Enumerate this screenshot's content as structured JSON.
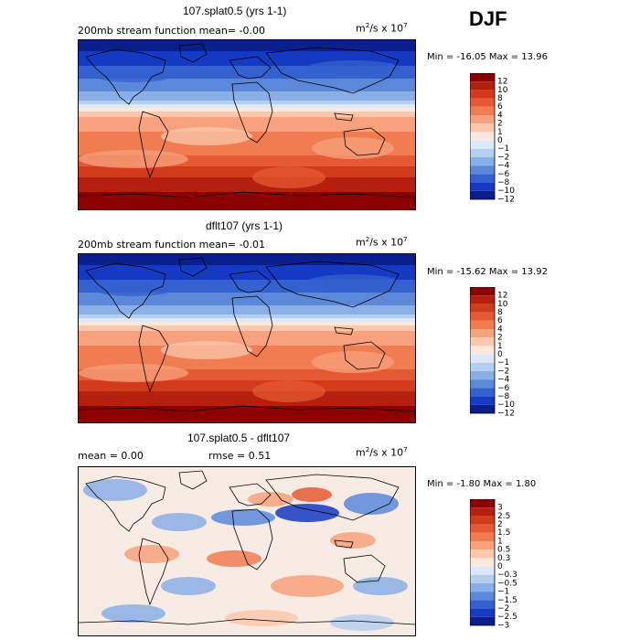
{
  "season": "DJF",
  "panels": [
    {
      "title": "107.splat0.5 (yrs 1-1)",
      "left_text": "200mb stream function  mean=   -0.00",
      "units": "m²/s x 10⁷",
      "minmax": "Min = -16.05 Max =  13.96",
      "colorbar_labels": [
        "12",
        "10",
        "8",
        "6",
        "4",
        "2",
        "1",
        "0",
        "−1",
        "−2",
        "−4",
        "−6",
        "−8",
        "−10",
        "−12"
      ]
    },
    {
      "title": "dflt107 (yrs 1-1)",
      "left_text": "200mb stream function  mean=   -0.01",
      "units": "m²/s x 10⁷",
      "minmax": "Min = -15.62 Max =  13.92",
      "colorbar_labels": [
        "12",
        "10",
        "8",
        "6",
        "4",
        "2",
        "1",
        "0",
        "−1",
        "−2",
        "−4",
        "−6",
        "−8",
        "−10",
        "−12"
      ]
    },
    {
      "title": "107.splat0.5 - dflt107",
      "left_text": "mean =    0.00",
      "rmse_text": "rmse =    0.51",
      "units": "m²/s x 10⁷",
      "minmax": "Min = -1.80 Max =  1.80",
      "colorbar_labels": [
        "3",
        "2.5",
        "2",
        "1.5",
        "1",
        "0.5",
        "0.3",
        "0",
        "−0.3",
        "−0.5",
        "−1",
        "−1.5",
        "−2",
        "−2.5",
        "−3"
      ]
    }
  ],
  "colors": {
    "main_scale": [
      "#8b0000",
      "#b5200e",
      "#d13a1a",
      "#e55a32",
      "#f07c52",
      "#f7a27d",
      "#fbc8ad",
      "#fde8dc",
      "#dde9f8",
      "#b6cff0",
      "#8aaee6",
      "#5c88da",
      "#3361cf",
      "#1439c2",
      "#0a1f8c"
    ],
    "diff_scale": [
      "#8b0000",
      "#b5200e",
      "#d13a1a",
      "#e55a32",
      "#f07c52",
      "#f7a27d",
      "#fbc8ad",
      "#fde8dc",
      "#dde9f8",
      "#b6cff0",
      "#8aaee6",
      "#5c88da",
      "#3361cf",
      "#1439c2",
      "#0a1f8c"
    ]
  },
  "chart_data": [
    {
      "type": "heatmap",
      "title": "107.splat0.5 (yrs 1-1)",
      "field": "200mb stream function",
      "units": "m2/s x 10^7",
      "mean": -0.0,
      "min": -16.05,
      "max": 13.96,
      "contour_levels": [
        -12,
        -10,
        -8,
        -6,
        -4,
        -2,
        -1,
        0,
        1,
        2,
        4,
        6,
        8,
        10,
        12
      ],
      "latitude_profile": [
        {
          "lat": 90,
          "value": -12
        },
        {
          "lat": 60,
          "value": -8
        },
        {
          "lat": 30,
          "value": -2
        },
        {
          "lat": 15,
          "value": 1
        },
        {
          "lat": 0,
          "value": 3
        },
        {
          "lat": -15,
          "value": 4
        },
        {
          "lat": -30,
          "value": 6
        },
        {
          "lat": -50,
          "value": 10
        },
        {
          "lat": -90,
          "value": 13
        }
      ]
    },
    {
      "type": "heatmap",
      "title": "dflt107 (yrs 1-1)",
      "field": "200mb stream function",
      "units": "m2/s x 10^7",
      "mean": -0.01,
      "min": -15.62,
      "max": 13.92,
      "contour_levels": [
        -12,
        -10,
        -8,
        -6,
        -4,
        -2,
        -1,
        0,
        1,
        2,
        4,
        6,
        8,
        10,
        12
      ],
      "latitude_profile": [
        {
          "lat": 90,
          "value": -12
        },
        {
          "lat": 60,
          "value": -8
        },
        {
          "lat": 30,
          "value": -2
        },
        {
          "lat": 15,
          "value": 1
        },
        {
          "lat": 0,
          "value": 3
        },
        {
          "lat": -15,
          "value": 4
        },
        {
          "lat": -30,
          "value": 6
        },
        {
          "lat": -50,
          "value": 10
        },
        {
          "lat": -90,
          "value": 13
        }
      ]
    },
    {
      "type": "heatmap",
      "title": "107.splat0.5 - dflt107",
      "units": "m2/s x 10^7",
      "mean": 0.0,
      "rmse": 0.51,
      "min": -1.8,
      "max": 1.8,
      "contour_levels": [
        -3,
        -2.5,
        -2,
        -1.5,
        -1,
        -0.5,
        -0.3,
        0,
        0.3,
        0.5,
        1,
        1.5,
        2,
        2.5,
        3
      ]
    }
  ]
}
